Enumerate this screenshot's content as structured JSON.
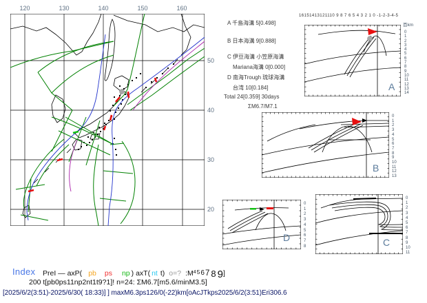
{
  "map": {
    "lon_labels": [
      "120",
      "130",
      "140",
      "150",
      "160"
    ],
    "lat_labels": [
      "50",
      "40",
      "30",
      "20"
    ]
  },
  "legend": {
    "line_a": "A 千島海溝 5[0.498]",
    "line_b": "B 日本海溝 9[0.888]",
    "line_c1": "C 伊豆海溝 小笠原海溝",
    "line_c2": "Mariana海溝 0[0.000]",
    "line_d1": "D 南海Trough 琉球海溝",
    "line_d2": "台湾 10[0.184]",
    "total": "Total 24[0.359] 30days",
    "sigma": "ΣM6.7/M7.1"
  },
  "charts": {
    "a": {
      "label": "A",
      "ruler": "16151413121110 9 8 7 6 5 4 3 2 1 0 -1-2-3-4-5",
      "unit": "百km",
      "depths": "0\n1\n2\n3\n4\n5\n6\n7\n8\n9\n10\n11\n12\n13\n14"
    },
    "b": {
      "label": "B",
      "depths": "0\n1\n2\n3\n4\n5\n6\n7\n8\n9\n10\n11\n12\n13"
    },
    "c": {
      "label": "C",
      "depths": "0\n1\n2\n3\n4\n5\n6\n7\n8\n9\n10\n11"
    },
    "d": {
      "label": "D",
      "depths": "0\n1\n2\n3\n4\n5\n6\n7\n8"
    }
  },
  "footer": {
    "index": "Index",
    "l1_a": "PreI — axP(",
    "l1_pb": "pb",
    "l1_ps": "ps",
    "l1_np": "np",
    "l1_b": ") axT(",
    "l1_nt": "nt",
    "l1_t": "t)",
    "l1_o": "o=?",
    "l1_m": ":M",
    "l1_d4": "4",
    "l1_d5": "5",
    "l1_d6": "6",
    "l1_d7": "7",
    "l1_d8": "8",
    "l1_d9": "9",
    "l1_end": "]",
    "line2": "200 t[pb0ps11np2nt1t9?1]! n=24: ΣM6.7[m5.6/minM3.5]",
    "line3": "[2025/6/2(3:51)-2025/6/30( 18:33)] ] maxM6.3ps126/0(-22)km[oAcJTkps2025/6/2(3:51)Eri306.6"
  },
  "colors": {
    "boundary_green": "#008000",
    "trench_blue": "#2233cc",
    "trench_purple": "#aa22aa",
    "marker_red": "#e81010",
    "marker_green": "#12c112",
    "epicenter_gray": "#a8a8a8",
    "index_blue": "#4977e6",
    "pb_orange": "#f5a623",
    "ps_red": "#f03030",
    "np_green": "#16b816",
    "nt_cyan": "#28c8f0",
    "footer_navy": "#0b1666"
  }
}
